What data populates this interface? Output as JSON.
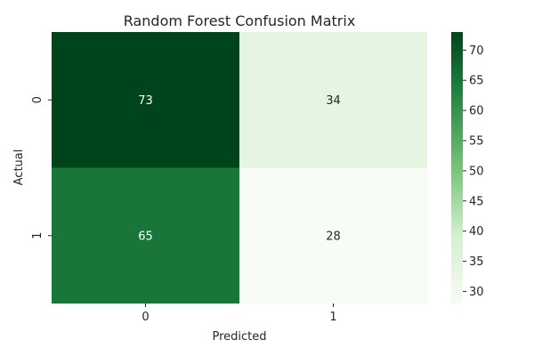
{
  "chart_data": {
    "type": "heatmap",
    "title": "Random Forest Confusion Matrix",
    "xlabel": "Predicted",
    "ylabel": "Actual",
    "x_categories": [
      "0",
      "1"
    ],
    "y_categories": [
      "0",
      "1"
    ],
    "values": [
      [
        73,
        34
      ],
      [
        65,
        28
      ]
    ],
    "colormap": "Greens",
    "colorbar": {
      "range": [
        28,
        73
      ],
      "ticks": [
        "30",
        "35",
        "40",
        "45",
        "50",
        "55",
        "60",
        "65",
        "70"
      ]
    },
    "annotation_colors": {
      "dark_cell": "#ffffff",
      "light_cell": "#262626"
    }
  }
}
